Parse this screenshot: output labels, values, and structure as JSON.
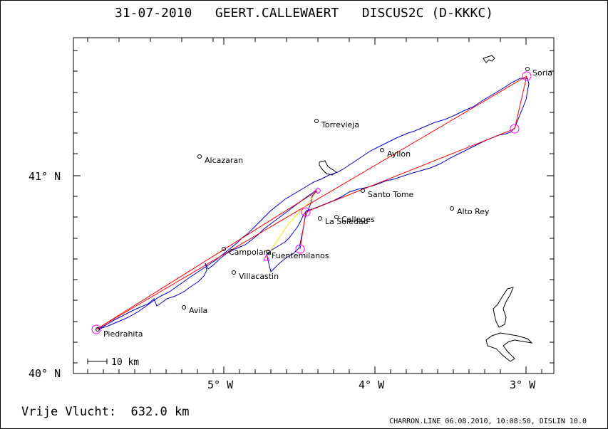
{
  "header": {
    "date": "31-07-2010",
    "pilot": "GEERT.CALLEWAERT",
    "aircraft": "DISCUS2C (D-KKKC)"
  },
  "footer": {
    "distance_label": "Vrije Vlucht:",
    "distance_value": "632.0 km",
    "credit": "CHARRON.LINE 06.08.2010, 10:08:50, DISLIN 10.0"
  },
  "map": {
    "lat_labels": [
      "41° N",
      "40° N"
    ],
    "lon_labels": [
      "5° W",
      "4° W",
      "3° W"
    ],
    "scale_label": "10 km",
    "colors": {
      "track": "#0000cc",
      "task": "#ff0000",
      "alt_leg": "#ffdd00",
      "turnpoint": "#ff00ff",
      "frame": "#000000"
    },
    "towns": [
      {
        "name": "Soria"
      },
      {
        "name": "Torrevieja"
      },
      {
        "name": "Ayllon"
      },
      {
        "name": "Alcazaran"
      },
      {
        "name": "Santo Tome"
      },
      {
        "name": "Alto Rey"
      },
      {
        "name": "Calleges"
      },
      {
        "name": "La Soledad"
      },
      {
        "name": "Campolara"
      },
      {
        "name": "Fuentemilanos"
      },
      {
        "name": "Villacastin"
      },
      {
        "name": "Avila"
      },
      {
        "name": "Piedrahita"
      }
    ]
  }
}
